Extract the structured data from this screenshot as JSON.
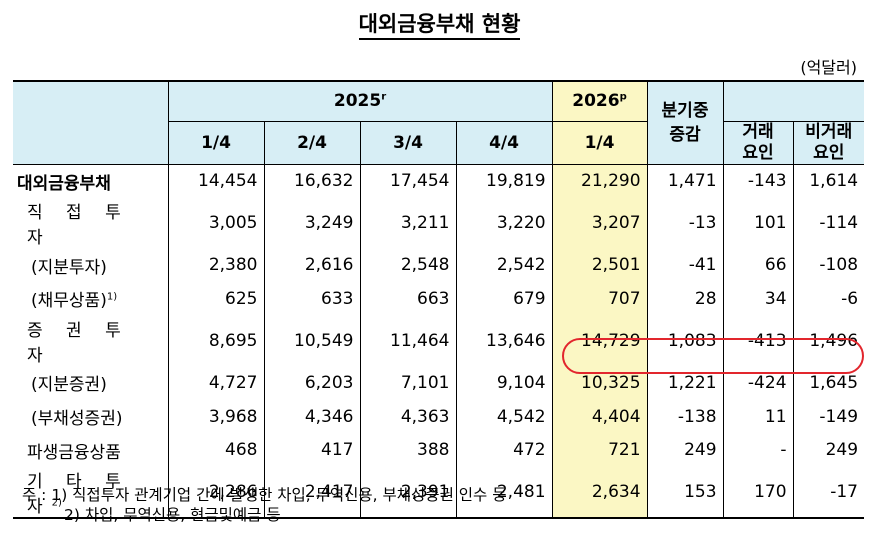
{
  "title": "대외금융부채  현황",
  "unit": "(억달러)",
  "header": {
    "year2025": "2025",
    "year2025_sup": "r",
    "year2026": "2026",
    "year2026_sup": "p",
    "change": "분기중\n증감",
    "trans": "거래\n요인",
    "nontrans": "비거래\n요인",
    "quarters": [
      "1/4",
      "2/4",
      "3/4",
      "4/4",
      "1/4"
    ]
  },
  "rows": [
    {
      "label": "대외금융부채",
      "values": [
        "14,454",
        "16,632",
        "17,454",
        "19,819",
        "21,290",
        "1,471",
        "-143",
        "1,614"
      ]
    },
    {
      "label": "직 접 투 자",
      "values": [
        "3,005",
        "3,249",
        "3,211",
        "3,220",
        "3,207",
        "-13",
        "101",
        "-114"
      ]
    },
    {
      "label": "(지분투자)",
      "values": [
        "2,380",
        "2,616",
        "2,548",
        "2,542",
        "2,501",
        "-41",
        "66",
        "-108"
      ]
    },
    {
      "label": "(채무상품)",
      "sup": "1)",
      "values": [
        "625",
        "633",
        "663",
        "679",
        "707",
        "28",
        "34",
        "-6"
      ]
    },
    {
      "label": "증 권 투 자",
      "values": [
        "8,695",
        "10,549",
        "11,464",
        "13,646",
        "14,729",
        "1,083",
        "-413",
        "1,496"
      ]
    },
    {
      "label": "(지분증권)",
      "values": [
        "4,727",
        "6,203",
        "7,101",
        "9,104",
        "10,325",
        "1,221",
        "-424",
        "1,645"
      ]
    },
    {
      "label": "(부채성증권)",
      "values": [
        "3,968",
        "4,346",
        "4,363",
        "4,542",
        "4,404",
        "-138",
        "11",
        "-149"
      ]
    },
    {
      "label": "파생금융상품",
      "values": [
        "468",
        "417",
        "388",
        "472",
        "721",
        "249",
        "-",
        "249"
      ]
    },
    {
      "label": "기 타 투 자",
      "sup": "2)",
      "values": [
        "2,286",
        "2,417",
        "2,391",
        "2,481",
        "2,634",
        "153",
        "170",
        "-17"
      ]
    }
  ],
  "notes": [
    "주 : 1) 직접투자 관계기업 간에 발생한 차입, 무역신용, 부채성증권 인수 등",
    "2) 차입, 무역신용, 현금및예금 등"
  ],
  "colors": {
    "header_bg": "#d7eef5",
    "highlight_bg": "#fbf7c4",
    "oval": "#e2262d"
  }
}
